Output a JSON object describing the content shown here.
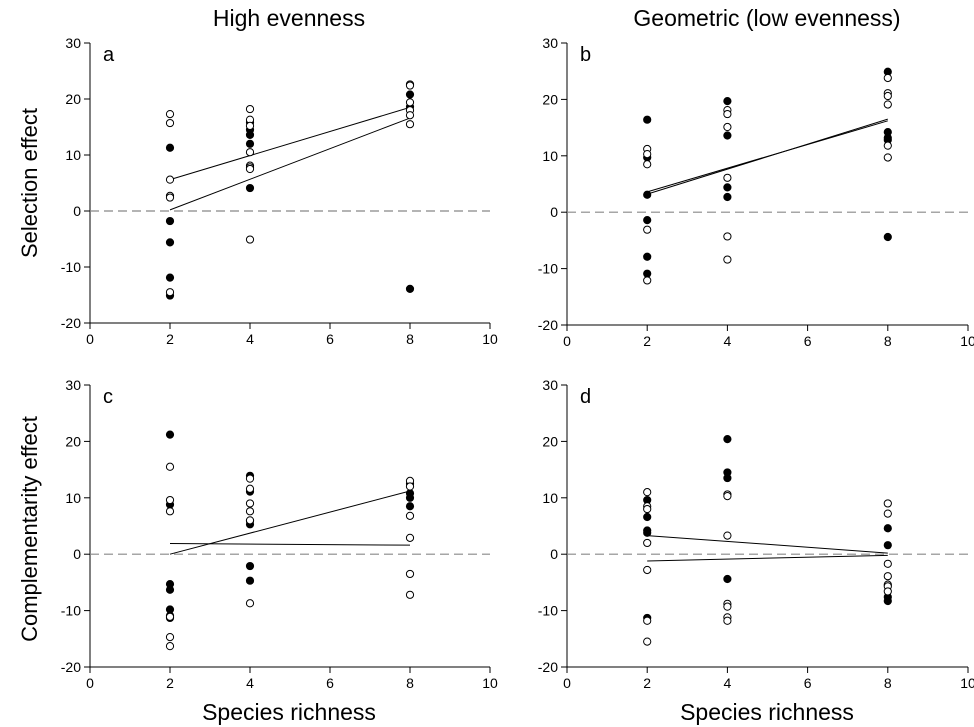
{
  "figure": {
    "column_titles": [
      "High evenness",
      "Geometric (low evenness)"
    ],
    "row_ylabels": [
      "Selection effect",
      "Complementarity effect"
    ],
    "xlabel": "Species richness",
    "colors": {
      "points": "#000000",
      "open_fill": "#ffffff",
      "fit": "#000000",
      "reference_line": "#888888"
    }
  },
  "chart_data": [
    {
      "panel": "a",
      "type": "scatter",
      "xlim": [
        0,
        10
      ],
      "ylim": [
        -20,
        30
      ],
      "xticks": [
        0,
        2,
        4,
        6,
        8,
        10
      ],
      "yticks": [
        -20,
        -10,
        0,
        10,
        20,
        30
      ],
      "series": [
        {
          "marker": "filled",
          "x": [
            2,
            2,
            2,
            2,
            2,
            4,
            4,
            4,
            4,
            4,
            8,
            8,
            8
          ],
          "y": [
            11.3,
            -1.8,
            -5.6,
            -11.9,
            -15.1,
            15.8,
            14.5,
            13.6,
            12.0,
            4.1,
            20.8,
            18.6,
            -13.9
          ]
        },
        {
          "marker": "open",
          "x": [
            2,
            2,
            2,
            2,
            2,
            2,
            4,
            4,
            4,
            4,
            4,
            4,
            4,
            4,
            8,
            8,
            8,
            8,
            8,
            8
          ],
          "y": [
            17.3,
            15.7,
            5.6,
            2.7,
            2.4,
            -14.5,
            18.2,
            16.3,
            15.2,
            10.5,
            8.1,
            7.8,
            7.5,
            -5.1,
            22.6,
            22.4,
            19.4,
            18.0,
            17.1,
            15.5
          ]
        }
      ],
      "fit_lines": [
        {
          "x": [
            2,
            8
          ],
          "y": [
            5.6,
            18.5
          ]
        },
        {
          "x": [
            2,
            8
          ],
          "y": [
            0.2,
            16.6
          ]
        }
      ],
      "reference_y": 0
    },
    {
      "panel": "b",
      "type": "scatter",
      "xlim": [
        0,
        10
      ],
      "ylim": [
        -20,
        30
      ],
      "xticks": [
        0,
        2,
        4,
        6,
        8,
        10
      ],
      "yticks": [
        -20,
        -10,
        0,
        10,
        20,
        30
      ],
      "series": [
        {
          "marker": "filled",
          "x": [
            2,
            2,
            2,
            2,
            2,
            2,
            4,
            4,
            4,
            4,
            8,
            8,
            8,
            8,
            8
          ],
          "y": [
            16.4,
            9.7,
            3.1,
            -1.4,
            -7.9,
            -10.9,
            19.7,
            13.6,
            4.4,
            2.7,
            24.9,
            14.2,
            13.2,
            12.8,
            -4.4
          ]
        },
        {
          "marker": "open",
          "x": [
            2,
            2,
            2,
            2,
            2,
            4,
            4,
            4,
            4,
            4,
            4,
            8,
            8,
            8,
            8,
            8,
            8
          ],
          "y": [
            11.2,
            10.3,
            8.5,
            -3.1,
            -12.1,
            18.1,
            17.4,
            15.1,
            6.1,
            -4.3,
            -8.4,
            23.8,
            21.1,
            20.6,
            19.1,
            11.8,
            9.7
          ]
        }
      ],
      "fit_lines": [
        {
          "x": [
            2,
            8
          ],
          "y": [
            3.6,
            16.2
          ]
        },
        {
          "x": [
            2,
            8
          ],
          "y": [
            3.2,
            16.5
          ]
        }
      ],
      "reference_y": 0
    },
    {
      "panel": "c",
      "type": "scatter",
      "xlim": [
        0,
        10
      ],
      "ylim": [
        -20,
        30
      ],
      "xticks": [
        0,
        2,
        4,
        6,
        8,
        10
      ],
      "yticks": [
        -20,
        -10,
        0,
        10,
        20,
        30
      ],
      "series": [
        {
          "marker": "filled",
          "x": [
            2,
            2,
            2,
            2,
            2,
            2,
            2,
            4,
            4,
            4,
            4,
            4,
            4,
            8,
            8,
            8,
            8
          ],
          "y": [
            21.2,
            8.8,
            -5.3,
            -6.3,
            -9.8,
            -10.9,
            -11.3,
            13.9,
            11.1,
            5.9,
            5.3,
            -2.1,
            -4.7,
            12.5,
            10.8,
            10.0,
            8.5
          ]
        },
        {
          "marker": "open",
          "x": [
            2,
            2,
            2,
            2,
            2,
            2,
            4,
            4,
            4,
            4,
            4,
            4,
            8,
            8,
            8,
            8,
            8,
            8
          ],
          "y": [
            15.5,
            9.6,
            7.6,
            -11.1,
            -14.7,
            -16.3,
            13.4,
            11.6,
            9.0,
            7.6,
            6.0,
            -8.7,
            13.0,
            12.0,
            6.8,
            2.9,
            -3.5,
            -7.2
          ]
        }
      ],
      "fit_lines": [
        {
          "x": [
            2,
            8
          ],
          "y": [
            0.0,
            11.2
          ]
        },
        {
          "x": [
            2,
            8
          ],
          "y": [
            1.9,
            1.6
          ]
        }
      ],
      "reference_y": 0
    },
    {
      "panel": "d",
      "type": "scatter",
      "xlim": [
        0,
        10
      ],
      "ylim": [
        -20,
        30
      ],
      "xticks": [
        0,
        2,
        4,
        6,
        8,
        10
      ],
      "yticks": [
        -20,
        -10,
        0,
        10,
        20,
        30
      ],
      "series": [
        {
          "marker": "filled",
          "x": [
            2,
            2,
            2,
            2,
            2,
            4,
            4,
            4,
            4,
            8,
            8,
            8,
            8
          ],
          "y": [
            9.6,
            6.6,
            4.2,
            3.8,
            -11.3,
            20.4,
            14.5,
            13.5,
            -4.4,
            4.6,
            1.6,
            -7.6,
            -8.3
          ]
        },
        {
          "marker": "open",
          "x": [
            2,
            2,
            2,
            2,
            2,
            2,
            2,
            4,
            4,
            4,
            4,
            4,
            4,
            4,
            8,
            8,
            8,
            8,
            8,
            8,
            8
          ],
          "y": [
            11.0,
            8.5,
            8.0,
            2.0,
            -2.8,
            -11.8,
            -15.5,
            10.6,
            10.3,
            3.3,
            -8.8,
            -9.3,
            -11.2,
            -11.8,
            9.0,
            7.2,
            -1.7,
            -5.4,
            -5.7,
            -6.6,
            -3.9
          ]
        }
      ],
      "fit_lines": [
        {
          "x": [
            2,
            8
          ],
          "y": [
            3.3,
            0.2
          ]
        },
        {
          "x": [
            2,
            8
          ],
          "y": [
            -1.2,
            -0.2
          ]
        }
      ],
      "reference_y": 0
    }
  ]
}
